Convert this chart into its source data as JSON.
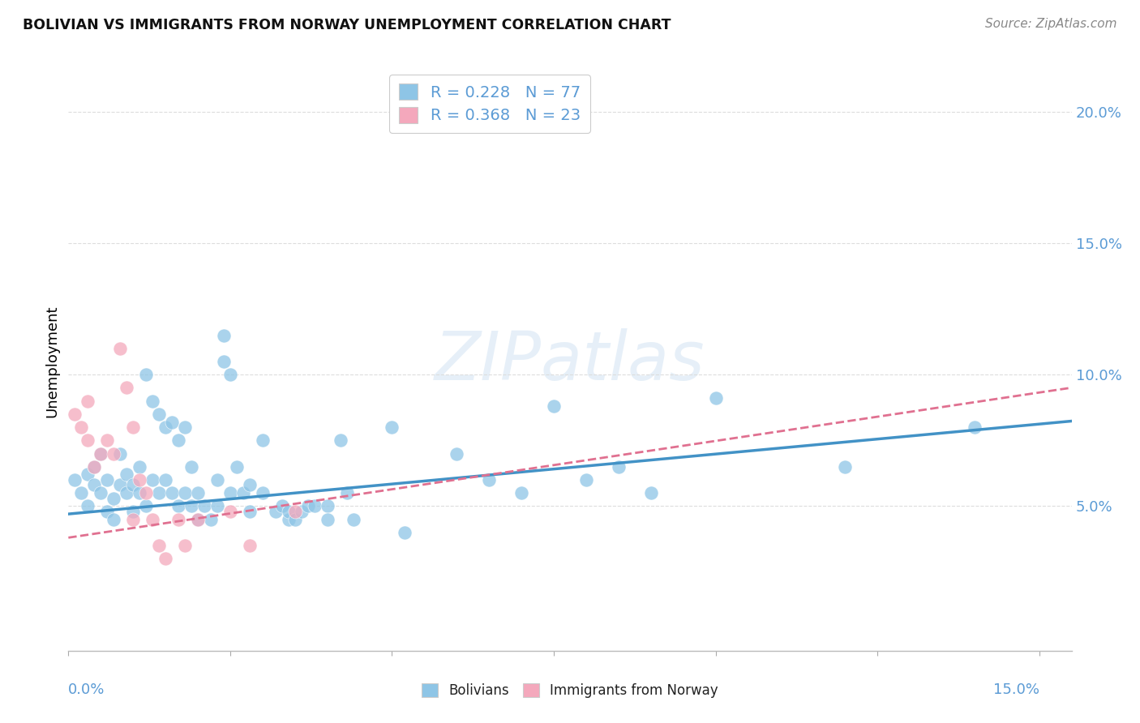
{
  "title": "BOLIVIAN VS IMMIGRANTS FROM NORWAY UNEMPLOYMENT CORRELATION CHART",
  "source": "Source: ZipAtlas.com",
  "ylabel": "Unemployment",
  "watermark": "ZIPatlas",
  "xlim": [
    0.0,
    0.155
  ],
  "ylim": [
    -0.005,
    0.215
  ],
  "yticks": [
    0.05,
    0.1,
    0.15,
    0.2
  ],
  "ytick_labels": [
    "5.0%",
    "10.0%",
    "15.0%",
    "20.0%"
  ],
  "xtick_positions": [
    0.0,
    0.025,
    0.05,
    0.075,
    0.1,
    0.125,
    0.15
  ],
  "blue_color": "#8ec5e6",
  "pink_color": "#f4a8bc",
  "blue_line_color": "#4292c6",
  "pink_line_color": "#e07090",
  "tick_label_color": "#5b9bd5",
  "blue_scatter_x": [
    0.001,
    0.002,
    0.003,
    0.003,
    0.004,
    0.004,
    0.005,
    0.005,
    0.006,
    0.006,
    0.007,
    0.007,
    0.008,
    0.008,
    0.009,
    0.009,
    0.01,
    0.01,
    0.011,
    0.011,
    0.012,
    0.012,
    0.013,
    0.013,
    0.014,
    0.014,
    0.015,
    0.015,
    0.016,
    0.016,
    0.017,
    0.017,
    0.018,
    0.018,
    0.019,
    0.019,
    0.02,
    0.02,
    0.021,
    0.022,
    0.023,
    0.023,
    0.024,
    0.024,
    0.025,
    0.025,
    0.026,
    0.027,
    0.028,
    0.028,
    0.03,
    0.03,
    0.032,
    0.033,
    0.034,
    0.034,
    0.035,
    0.036,
    0.037,
    0.038,
    0.04,
    0.04,
    0.042,
    0.043,
    0.044,
    0.05,
    0.052,
    0.06,
    0.065,
    0.07,
    0.075,
    0.08,
    0.085,
    0.09,
    0.1,
    0.12,
    0.14
  ],
  "blue_scatter_y": [
    0.06,
    0.055,
    0.05,
    0.062,
    0.058,
    0.065,
    0.07,
    0.055,
    0.048,
    0.06,
    0.053,
    0.045,
    0.058,
    0.07,
    0.055,
    0.062,
    0.048,
    0.058,
    0.055,
    0.065,
    0.05,
    0.1,
    0.09,
    0.06,
    0.085,
    0.055,
    0.08,
    0.06,
    0.082,
    0.055,
    0.075,
    0.05,
    0.08,
    0.055,
    0.065,
    0.05,
    0.045,
    0.055,
    0.05,
    0.045,
    0.05,
    0.06,
    0.115,
    0.105,
    0.1,
    0.055,
    0.065,
    0.055,
    0.048,
    0.058,
    0.075,
    0.055,
    0.048,
    0.05,
    0.045,
    0.048,
    0.045,
    0.048,
    0.05,
    0.05,
    0.05,
    0.045,
    0.075,
    0.055,
    0.045,
    0.08,
    0.04,
    0.07,
    0.06,
    0.055,
    0.088,
    0.06,
    0.065,
    0.055,
    0.091,
    0.065,
    0.08
  ],
  "pink_scatter_x": [
    0.001,
    0.002,
    0.003,
    0.003,
    0.004,
    0.005,
    0.006,
    0.007,
    0.008,
    0.009,
    0.01,
    0.01,
    0.011,
    0.012,
    0.013,
    0.014,
    0.015,
    0.017,
    0.018,
    0.02,
    0.025,
    0.028,
    0.035
  ],
  "pink_scatter_y": [
    0.085,
    0.08,
    0.075,
    0.09,
    0.065,
    0.07,
    0.075,
    0.07,
    0.11,
    0.095,
    0.08,
    0.045,
    0.06,
    0.055,
    0.045,
    0.035,
    0.03,
    0.045,
    0.035,
    0.045,
    0.048,
    0.035,
    0.048
  ],
  "blue_slope": 0.228,
  "blue_intercept": 0.047,
  "pink_slope": 0.368,
  "pink_intercept": 0.038,
  "background_color": "#ffffff",
  "grid_color": "#dddddd"
}
